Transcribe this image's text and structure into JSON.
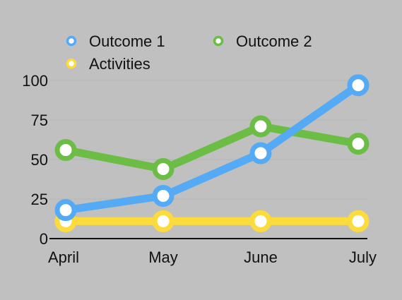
{
  "chart_data": {
    "type": "line",
    "title": "",
    "xlabel": "",
    "ylabel": "",
    "categories": [
      "April",
      "May",
      "June",
      "July"
    ],
    "y_ticks": [
      "0",
      "25",
      "50",
      "75",
      "100"
    ],
    "ylim": [
      0,
      110
    ],
    "grid": false,
    "legend_position": "top-left",
    "series": [
      {
        "name": "Outcome 1",
        "color": "#55aaf5",
        "values": [
          18,
          27,
          54,
          97
        ]
      },
      {
        "name": "Outcome 2",
        "color": "#6cbd45",
        "values": [
          56,
          44,
          71,
          60
        ]
      },
      {
        "name": "Activities",
        "color": "#fcdc3c",
        "values": [
          11,
          11,
          11,
          11
        ]
      }
    ]
  }
}
